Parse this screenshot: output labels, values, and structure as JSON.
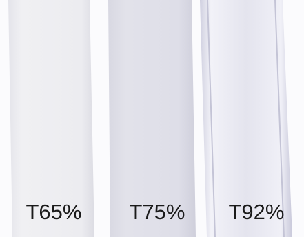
{
  "labels": [
    "T65%",
    "T75%",
    "T92%"
  ]
}
